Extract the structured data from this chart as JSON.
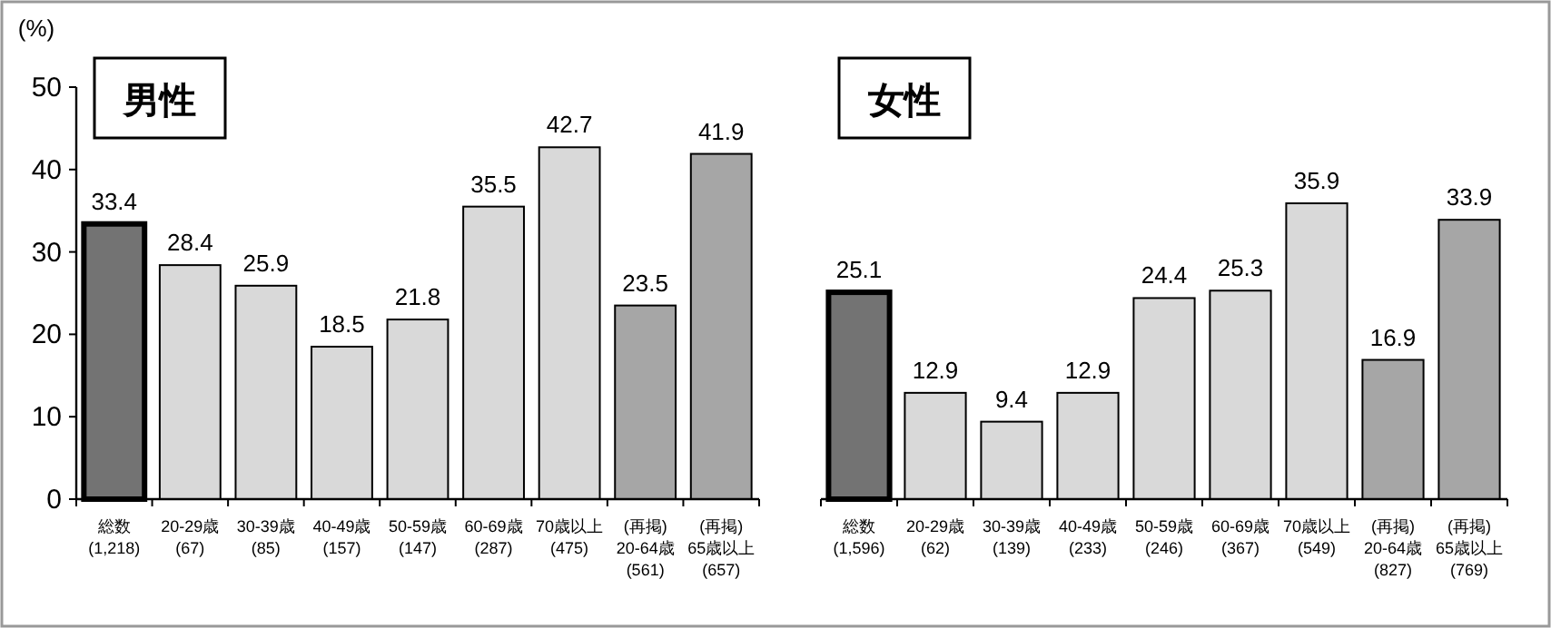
{
  "chart_data": [
    {
      "type": "bar",
      "title": "男性",
      "ylabel": "(%)",
      "ylim": [
        0,
        50
      ],
      "yticks": [
        0,
        10,
        20,
        30,
        40,
        50
      ],
      "data_labels": true,
      "categories": [
        "総数\n(1,218)",
        "20-29歳\n(67)",
        "30-39歳\n(85)",
        "40-49歳\n(157)",
        "50-59歳\n(147)",
        "60-69歳\n(287)",
        "70歳以上\n(475)",
        "(再掲)\n20-64歳\n(561)",
        "(再掲)\n65歳以上\n(657)"
      ],
      "values": [
        33.4,
        28.4,
        25.9,
        18.5,
        21.8,
        35.5,
        42.7,
        23.5,
        41.9
      ],
      "colors": [
        "#737373",
        "#d9d9d9",
        "#d9d9d9",
        "#d9d9d9",
        "#d9d9d9",
        "#d9d9d9",
        "#d9d9d9",
        "#a6a6a6",
        "#a6a6a6"
      ]
    },
    {
      "type": "bar",
      "title": "女性",
      "ylim": [
        0,
        50
      ],
      "tick_labels": "x",
      "data_labels": true,
      "categories": [
        "総数\n(1,596)",
        "20-29歳\n(62)",
        "30-39歳\n(139)",
        "40-49歳\n(233)",
        "50-59歳\n(246)",
        "60-69歳\n(367)",
        "70歳以上\n(549)",
        "(再掲)\n20-64歳\n(827)",
        "(再掲)\n65歳以上\n(769)"
      ],
      "values": [
        25.1,
        12.9,
        9.4,
        12.9,
        24.4,
        25.3,
        35.9,
        16.9,
        33.9
      ],
      "colors": [
        "#737373",
        "#d9d9d9",
        "#d9d9d9",
        "#d9d9d9",
        "#d9d9d9",
        "#d9d9d9",
        "#d9d9d9",
        "#a6a6a6",
        "#a6a6a6"
      ]
    }
  ]
}
